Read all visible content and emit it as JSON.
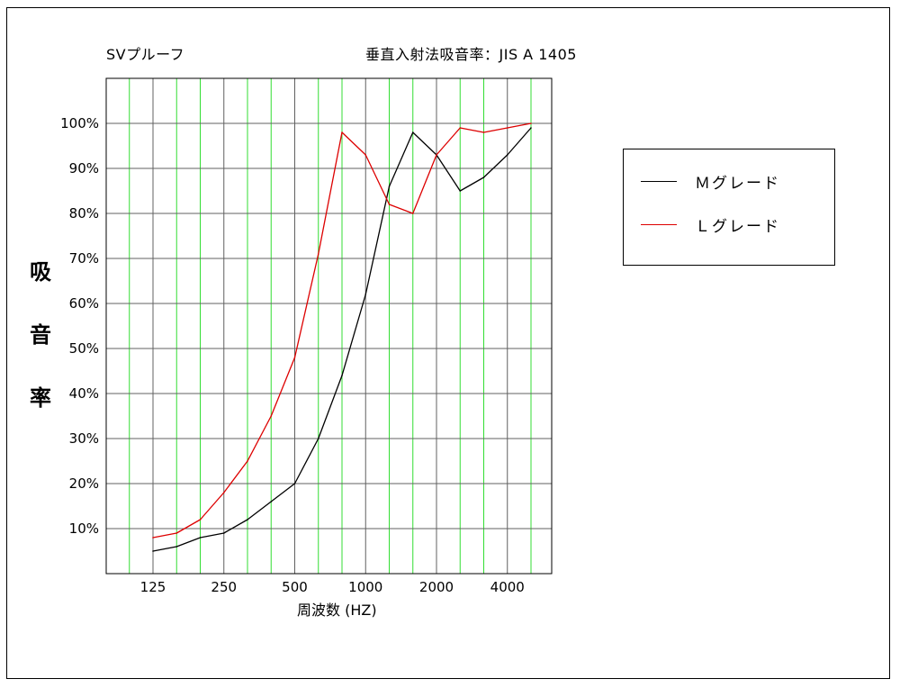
{
  "header": {
    "product": "SVプルーフ",
    "subtitle": "垂直入射法吸音率：JIS A 1405"
  },
  "chart_data": {
    "type": "line",
    "ylabel": [
      "吸",
      "音",
      "率"
    ],
    "xlabel": "周波数 (HZ)",
    "x": [
      125,
      160,
      200,
      250,
      315,
      400,
      500,
      630,
      800,
      1000,
      1250,
      1600,
      2000,
      2500,
      3150,
      4000,
      5000
    ],
    "x_ticks": [
      "125",
      "250",
      "500",
      "1000",
      "2000",
      "4000"
    ],
    "y_ticks": [
      "10%",
      "20%",
      "30%",
      "40%",
      "50%",
      "60%",
      "70%",
      "80%",
      "90%",
      "100%"
    ],
    "ylim": [
      0,
      110
    ],
    "grid": true,
    "legend_position": "right",
    "series": [
      {
        "name": "Ｍグレード",
        "color": "#000000",
        "values": [
          5,
          6,
          8,
          9,
          12,
          16,
          20,
          30,
          44,
          62,
          86,
          98,
          93,
          85,
          88,
          93,
          99
        ]
      },
      {
        "name": "Ｌグレード",
        "color": "#dd0000",
        "values": [
          8,
          9,
          12,
          18,
          25,
          35,
          48,
          71,
          98,
          93,
          82,
          80,
          93,
          99,
          98,
          99,
          100
        ]
      }
    ],
    "colors": {
      "major_grid": "#606060",
      "minor_grid": "#33dd33"
    }
  }
}
